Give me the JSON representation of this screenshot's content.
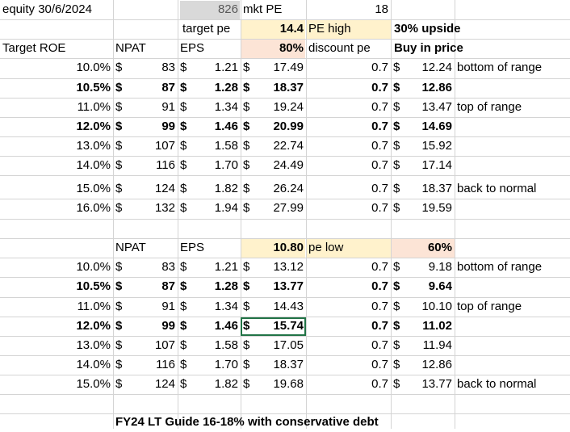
{
  "header": {
    "equity_label": "equity 30/6/2024",
    "equity_value": "826",
    "mkt_pe_label": "mkt PE",
    "mkt_pe_value": "18",
    "target_pe_label": "target pe",
    "target_pe_value": "14.4",
    "pe_high_label": "PE high",
    "upside_label": "30% upside",
    "discount_value": "80%",
    "discount_label": "discount pe",
    "buy_in_label": "Buy in price"
  },
  "col_headers_1": {
    "roe": "Target ROE",
    "npat": "NPAT",
    "eps": "EPS"
  },
  "table1": [
    {
      "roe": "10.0%",
      "npat": "83",
      "eps": "1.21",
      "price": "17.49",
      "factor": "0.7",
      "buy": "12.24",
      "note": "bottom of range",
      "bold": false
    },
    {
      "roe": "10.5%",
      "npat": "87",
      "eps": "1.28",
      "price": "18.37",
      "factor": "0.7",
      "buy": "12.86",
      "note": "",
      "bold": true
    },
    {
      "roe": "11.0%",
      "npat": "91",
      "eps": "1.34",
      "price": "19.24",
      "factor": "0.7",
      "buy": "13.47",
      "note": "top of range",
      "bold": false
    },
    {
      "roe": "12.0%",
      "npat": "99",
      "eps": "1.46",
      "price": "20.99",
      "factor": "0.7",
      "buy": "14.69",
      "note": "",
      "bold": true
    },
    {
      "roe": "13.0%",
      "npat": "107",
      "eps": "1.58",
      "price": "22.74",
      "factor": "0.7",
      "buy": "15.92",
      "note": "",
      "bold": false
    },
    {
      "roe": "14.0%",
      "npat": "116",
      "eps": "1.70",
      "price": "24.49",
      "factor": "0.7",
      "buy": "17.14",
      "note": "",
      "bold": false
    },
    {
      "roe": "15.0%",
      "npat": "124",
      "eps": "1.82",
      "price": "26.24",
      "factor": "0.7",
      "buy": "18.37",
      "note": "back to normal",
      "bold": false
    },
    {
      "roe": "16.0%",
      "npat": "132",
      "eps": "1.94",
      "price": "27.99",
      "factor": "0.7",
      "buy": "19.59",
      "note": "",
      "bold": false
    }
  ],
  "section2": {
    "npat": "NPAT",
    "eps": "EPS",
    "pe_value": "10.80",
    "pe_low_label": "pe low",
    "pct_value": "60%"
  },
  "table2": [
    {
      "roe": "10.0%",
      "npat": "83",
      "eps": "1.21",
      "price": "13.12",
      "factor": "0.7",
      "buy": "9.18",
      "note": "bottom of range",
      "bold": false
    },
    {
      "roe": "10.5%",
      "npat": "87",
      "eps": "1.28",
      "price": "13.77",
      "factor": "0.7",
      "buy": "9.64",
      "note": "",
      "bold": true
    },
    {
      "roe": "11.0%",
      "npat": "91",
      "eps": "1.34",
      "price": "14.43",
      "factor": "0.7",
      "buy": "10.10",
      "note": "top of range",
      "bold": false
    },
    {
      "roe": "12.0%",
      "npat": "99",
      "eps": "1.46",
      "price": "15.74",
      "factor": "0.7",
      "buy": "11.02",
      "note": "",
      "bold": true
    },
    {
      "roe": "13.0%",
      "npat": "107",
      "eps": "1.58",
      "price": "17.05",
      "factor": "0.7",
      "buy": "11.94",
      "note": "",
      "bold": false
    },
    {
      "roe": "14.0%",
      "npat": "116",
      "eps": "1.70",
      "price": "18.37",
      "factor": "0.7",
      "buy": "12.86",
      "note": "",
      "bold": false
    },
    {
      "roe": "15.0%",
      "npat": "124",
      "eps": "1.82",
      "price": "19.68",
      "factor": "0.7",
      "buy": "13.77",
      "note": "back to normal",
      "bold": false
    }
  ],
  "footer_note": "FY24 LT Guide 16-18% with conservative debt",
  "currency_symbol": "$",
  "colors": {
    "grey_fill": "#d9d9d9",
    "yellow_fill": "#fff2cc",
    "peach_fill": "#fce4d6",
    "selection_border": "#217346",
    "gridline": "#d4d4d4"
  }
}
